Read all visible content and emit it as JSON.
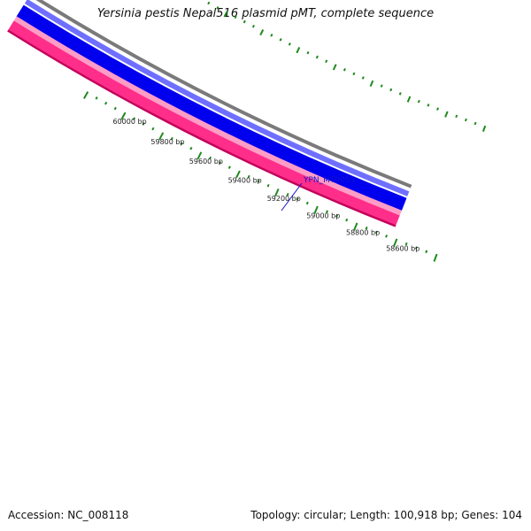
{
  "title": "Yersinia pestis Nepal516 plasmid pMT, complete sequence",
  "footer": {
    "accession": "Accession: NC_008118",
    "summary": "Topology: circular; Length: 100,918 bp; Genes: 104"
  },
  "colors": {
    "forward_track": "#ff2e8a",
    "forward_track_dark": "#c4005a",
    "forward_track_light": "#ff9cc6",
    "reverse_track": "#0000ee",
    "reverse_track_light": "#6f6fff",
    "backbone": "#7a7a7a",
    "tick": "#1e8a1e",
    "gene_label": "#1010cc"
  },
  "ticks": [
    {
      "bp": 60000,
      "label": "60000 bp"
    },
    {
      "bp": 59800,
      "label": "59800 bp"
    },
    {
      "bp": 59600,
      "label": "59600 bp"
    },
    {
      "bp": 59400,
      "label": "59400 bp"
    },
    {
      "bp": 59200,
      "label": "59200 bp"
    },
    {
      "bp": 59000,
      "label": "59000 bp"
    },
    {
      "bp": 58800,
      "label": "58800 bp"
    },
    {
      "bp": 58600,
      "label": "58600 bp"
    }
  ],
  "gene_labels": [
    {
      "name": "YPN_MT0059"
    }
  ]
}
